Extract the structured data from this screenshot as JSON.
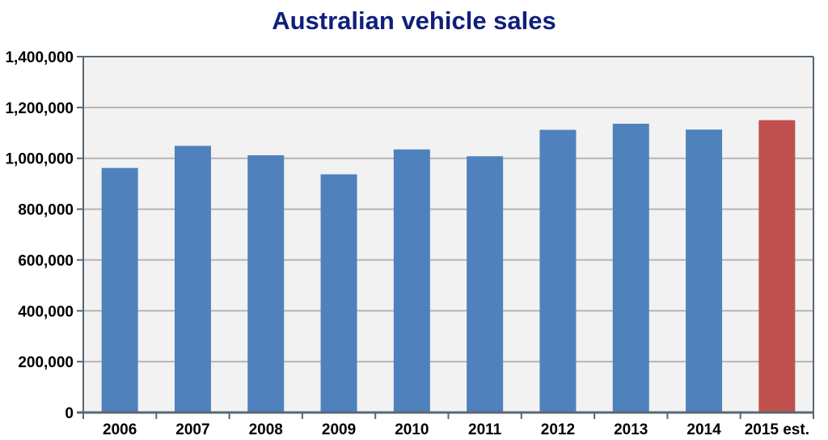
{
  "chart_data": {
    "type": "bar",
    "title": "Australian vehicle sales",
    "categories": [
      "2006",
      "2007",
      "2008",
      "2009",
      "2010",
      "2011",
      "2012",
      "2013",
      "2014",
      "2015 est."
    ],
    "values": [
      962000,
      1049000,
      1012000,
      937000,
      1035000,
      1008000,
      1112000,
      1136000,
      1113000,
      1150000
    ],
    "estimate_categories": [
      "2015 est."
    ],
    "ylim": [
      0,
      1400000
    ],
    "yticks": [
      0,
      200000,
      400000,
      600000,
      800000,
      1000000,
      1200000,
      1400000
    ],
    "ytick_labels": [
      "0",
      "200,000",
      "400,000",
      "600,000",
      "800,000",
      "1,000,000",
      "1,200,000",
      "1,400,000"
    ],
    "xlabel": "",
    "ylabel": "",
    "grid": true,
    "legend": "none",
    "colors": {
      "bar": "#4f81bd",
      "estimate_bar": "#c0504d",
      "plot_background": "#f2f2f2",
      "axis": "#5a6773",
      "gridline": "#b5b5b5",
      "title": "#0f1f7a",
      "text": "#000000"
    }
  }
}
